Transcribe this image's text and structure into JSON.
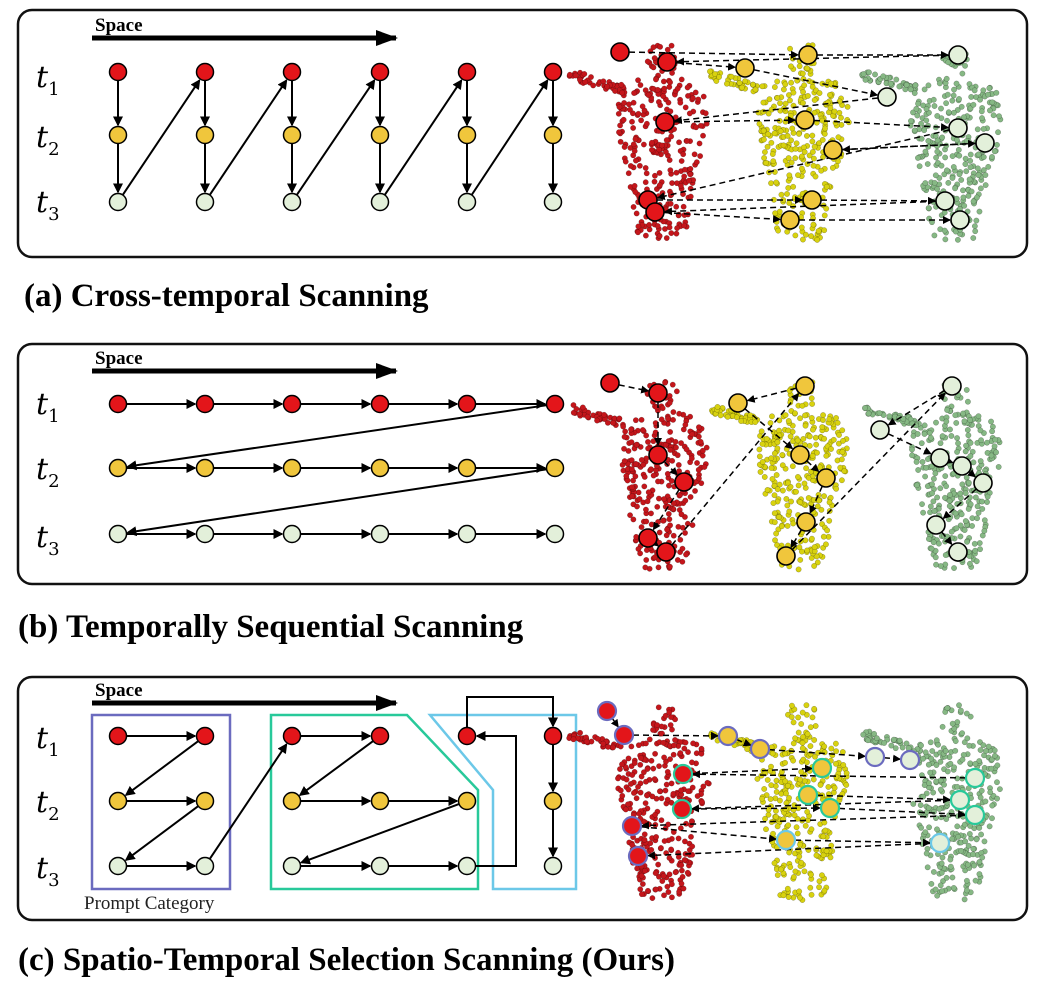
{
  "space_label": "Space",
  "time_labels": [
    {
      "base": "t",
      "sub": "1"
    },
    {
      "base": "t",
      "sub": "2"
    },
    {
      "base": "t",
      "sub": "3"
    }
  ],
  "captions": [
    "(a) Cross-temporal Scanning",
    "(b) Temporally Sequential Scanning",
    "(c) Spatio-Temporal Selection Scanning (Ours)"
  ],
  "prompt_category_label": "Prompt Category",
  "colors": {
    "t1": "#e3151a",
    "t2": "#f0c63c",
    "t3": "#e3f0da",
    "figure_red": "#c4161b",
    "figure_yellow": "#d8d20f",
    "figure_green": "#86b884",
    "group_purple": "#6b6bbf",
    "group_green": "#28c99a",
    "group_cyan": "#6cc8e8"
  }
}
